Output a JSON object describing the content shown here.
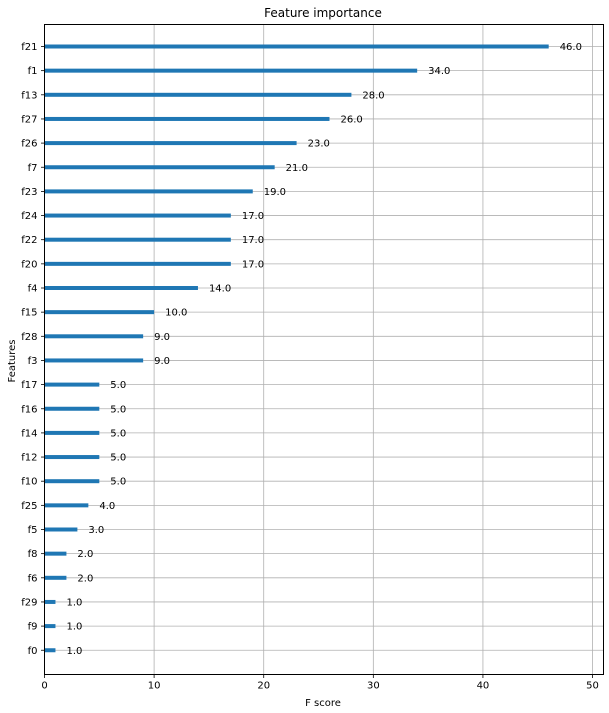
{
  "chart_data": {
    "type": "bar",
    "orientation": "horizontal",
    "title": "Feature importance",
    "xlabel": "F score",
    "ylabel": "Features",
    "xlim": [
      0,
      51
    ],
    "xticks": [
      0,
      10,
      20,
      30,
      40,
      50
    ],
    "grid": true,
    "bar_color": "#1f77b4",
    "categories": [
      "f21",
      "f1",
      "f13",
      "f27",
      "f26",
      "f7",
      "f23",
      "f24",
      "f22",
      "f20",
      "f4",
      "f15",
      "f28",
      "f3",
      "f17",
      "f16",
      "f14",
      "f12",
      "f10",
      "f25",
      "f5",
      "f8",
      "f6",
      "f29",
      "f9",
      "f0"
    ],
    "values": [
      46,
      34,
      28,
      26,
      23,
      21,
      19,
      17,
      17,
      17,
      14,
      10,
      9,
      9,
      5,
      5,
      5,
      5,
      5,
      4,
      3,
      2,
      2,
      1,
      1,
      1
    ],
    "value_labels": [
      "46.0",
      "34.0",
      "28.0",
      "26.0",
      "23.0",
      "21.0",
      "19.0",
      "17.0",
      "17.0",
      "17.0",
      "14.0",
      "10.0",
      "9.0",
      "9.0",
      "5.0",
      "5.0",
      "5.0",
      "5.0",
      "5.0",
      "4.0",
      "3.0",
      "2.0",
      "2.0",
      "1.0",
      "1.0",
      "1.0"
    ]
  }
}
